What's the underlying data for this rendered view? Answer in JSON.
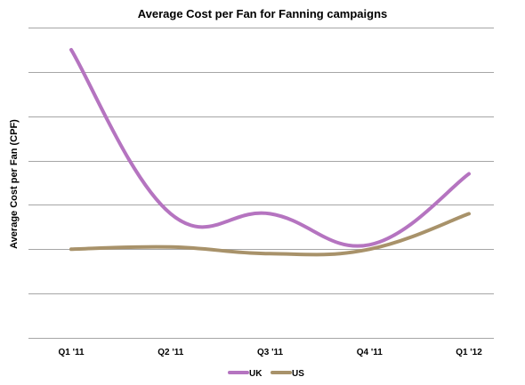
{
  "chart_data": {
    "type": "line",
    "title": "Average Cost per Fan for Fanning campaigns",
    "xlabel": "",
    "ylabel": "Average Cost per Fan (CPF)",
    "categories": [
      "Q1 '11",
      "Q2 '11",
      "Q3 '11",
      "Q4 '11",
      "Q1 '12"
    ],
    "ylim": [
      0,
      7
    ],
    "y_ticks_labeled": false,
    "grid": true,
    "smooth": true,
    "legend_position": "bottom",
    "series": [
      {
        "name": "UK",
        "color": "#b574c0",
        "values": [
          6.5,
          2.8,
          2.8,
          2.1,
          3.7
        ]
      },
      {
        "name": "US",
        "color": "#a8926a",
        "values": [
          2.0,
          2.05,
          1.9,
          2.0,
          2.8
        ]
      }
    ]
  }
}
